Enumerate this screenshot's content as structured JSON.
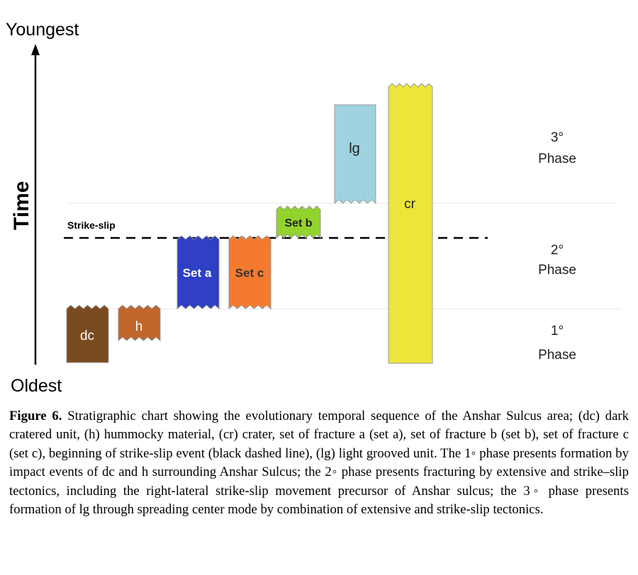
{
  "axis": {
    "top_label": "Youngest",
    "bottom_label": "Oldest",
    "title": "Time"
  },
  "event": {
    "label": "Strike-slip"
  },
  "phases": [
    {
      "number": "3°",
      "word": "Phase"
    },
    {
      "number": "2°",
      "word": "Phase"
    },
    {
      "number": "1°",
      "word": "Phase"
    }
  ],
  "units": {
    "dc": {
      "label": "dc",
      "color": "#7a4a21"
    },
    "h": {
      "label": "h",
      "color": "#c0652b"
    },
    "set_a": {
      "label": "Set a",
      "color": "#2f3fc6"
    },
    "set_c": {
      "label": "Set c",
      "color": "#f47a2e"
    },
    "set_b": {
      "label": "Set b",
      "color": "#93d32e"
    },
    "lg": {
      "label": "lg",
      "color": "#9fd3e0"
    },
    "cr": {
      "label": "cr",
      "color": "#ece63a"
    }
  },
  "caption": {
    "lead": "Figure 6.",
    "text": " Stratigraphic chart showing the evolutionary temporal sequence of the Anshar Sulcus area; (dc) dark cratered unit, (h) hummocky material, (cr) crater, set of fracture a (set a), set of fracture b (set b), set of fracture c (set c), beginning of strike-slip event (black dashed line), (lg) light grooved unit. The 1◦ phase presents formation by impact events of dc and h surrounding Anshar Sulcus; the 2◦ phase presents fracturing by extensive and strike–slip tectonics, including the right-lateral strike-slip movement precursor of Anshar sulcus; the 3◦ phase presents formation of lg through spreading center mode by combination of extensive and strike-slip tectonics."
  }
}
